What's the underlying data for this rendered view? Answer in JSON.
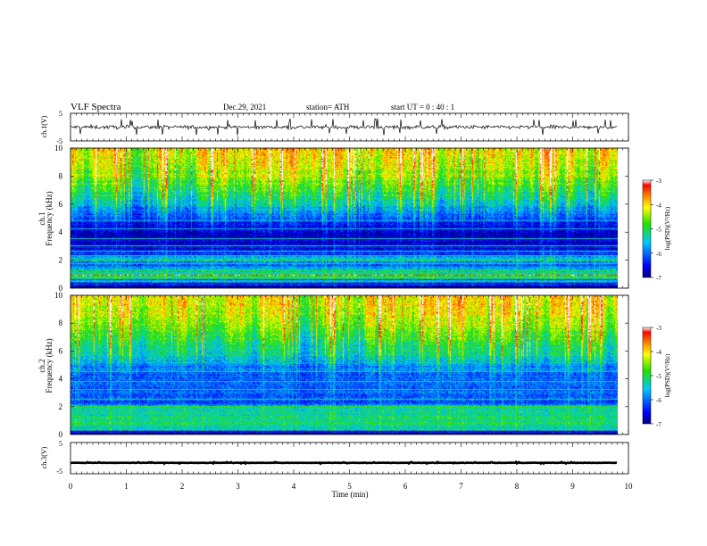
{
  "header": {
    "title": "VLF  Spectra",
    "date": "Dec.29, 2021",
    "station": "station= ATH",
    "start_ut": "start  UT  =    0  : 40 : 1"
  },
  "chart_data": [
    {
      "type": "line",
      "panel": "ch1-waveform",
      "ylabel": "ch.1(V)",
      "yticks": [
        "5",
        "-5"
      ],
      "ylim": [
        -5,
        5
      ],
      "xlim": [
        0,
        10
      ],
      "x_end": 9.8,
      "trace_level": 0,
      "trace_spread": 1.2
    },
    {
      "type": "heatmap",
      "panel": "ch1-spectrogram",
      "ylabel_1": "ch.1",
      "ylabel_2": "Frequency  (kHz)",
      "yticks": [
        "0",
        "2",
        "4",
        "6",
        "8",
        "10"
      ],
      "ylim": [
        0,
        10
      ],
      "xlim": [
        0,
        10
      ],
      "x_end": 9.8,
      "colorbar": {
        "label": "log(PSD)(V²/Hz)",
        "ticks": [
          "-3",
          "-4",
          "-5",
          "-6",
          "-7"
        ],
        "range": [
          -7,
          -3
        ]
      },
      "mean_log_psd": [
        [
          0.0,
          -7.2
        ],
        [
          0.3,
          -5.9
        ],
        [
          0.7,
          -5.0
        ],
        [
          1.2,
          -5.4
        ],
        [
          1.6,
          -6.1
        ],
        [
          2.1,
          -5.6
        ],
        [
          2.4,
          -6.3
        ],
        [
          3.0,
          -6.6
        ],
        [
          4.0,
          -6.8
        ],
        [
          4.6,
          -6.4
        ],
        [
          5.0,
          -6.1
        ],
        [
          5.8,
          -5.6
        ],
        [
          6.5,
          -5.2
        ],
        [
          7.5,
          -4.7
        ],
        [
          8.5,
          -4.3
        ],
        [
          10.0,
          -4.0
        ]
      ],
      "lines_kHz": [
        [
          0.3,
          -7.5
        ],
        [
          0.6,
          -6.2
        ],
        [
          0.9,
          -3.2
        ],
        [
          1.2,
          -4.9
        ],
        [
          1.7,
          -5.2
        ],
        [
          2.0,
          -4.8
        ],
        [
          2.3,
          -5.2
        ],
        [
          2.6,
          -5.4
        ],
        [
          3.0,
          -5.2
        ],
        [
          3.5,
          -5.4
        ],
        [
          4.2,
          -5.5
        ],
        [
          4.8,
          -5.5
        ]
      ]
    },
    {
      "type": "heatmap",
      "panel": "ch2-spectrogram",
      "ylabel_1": "ch.2",
      "ylabel_2": "Frequency  (kHz)",
      "yticks": [
        "0",
        "2",
        "4",
        "6",
        "8",
        "10"
      ],
      "ylim": [
        0,
        10
      ],
      "xlim": [
        0,
        10
      ],
      "x_end": 9.8,
      "colorbar": {
        "label": "log(PSD)(V²/Hz)",
        "ticks": [
          "-3",
          "-4",
          "-5",
          "-6",
          "-7"
        ],
        "range": [
          -7,
          -3
        ]
      },
      "mean_log_psd": [
        [
          0.0,
          -7.2
        ],
        [
          0.3,
          -5.4
        ],
        [
          0.8,
          -5.1
        ],
        [
          1.4,
          -5.2
        ],
        [
          1.9,
          -5.3
        ],
        [
          2.2,
          -6.2
        ],
        [
          2.8,
          -6.0
        ],
        [
          3.5,
          -6.0
        ],
        [
          4.2,
          -6.1
        ],
        [
          4.8,
          -5.9
        ],
        [
          5.5,
          -5.4
        ],
        [
          6.5,
          -5.0
        ],
        [
          7.5,
          -4.6
        ],
        [
          8.5,
          -4.3
        ],
        [
          10.0,
          -4.0
        ]
      ],
      "lines_kHz": [
        [
          0.2,
          -7.5
        ],
        [
          0.5,
          -5.5
        ],
        [
          1.0,
          -5.3
        ],
        [
          1.5,
          -5.0
        ],
        [
          2.0,
          -4.8
        ],
        [
          2.5,
          -5.1
        ],
        [
          3.2,
          -5.2
        ],
        [
          3.8,
          -5.3
        ],
        [
          4.5,
          -5.2
        ]
      ]
    },
    {
      "type": "line",
      "panel": "ch3-waveform",
      "ylabel": "ch.3(V)",
      "yticks": [
        "5",
        "-5"
      ],
      "ylim": [
        -5,
        5
      ],
      "xlim": [
        0,
        10
      ],
      "x_end": 9.8,
      "trace_level": -1.5,
      "trace_spread": 0.1
    }
  ],
  "xaxis": {
    "label": "Time  (min)",
    "ticks": [
      "0",
      "1",
      "2",
      "3",
      "4",
      "5",
      "6",
      "7",
      "8",
      "9",
      "10"
    ]
  }
}
